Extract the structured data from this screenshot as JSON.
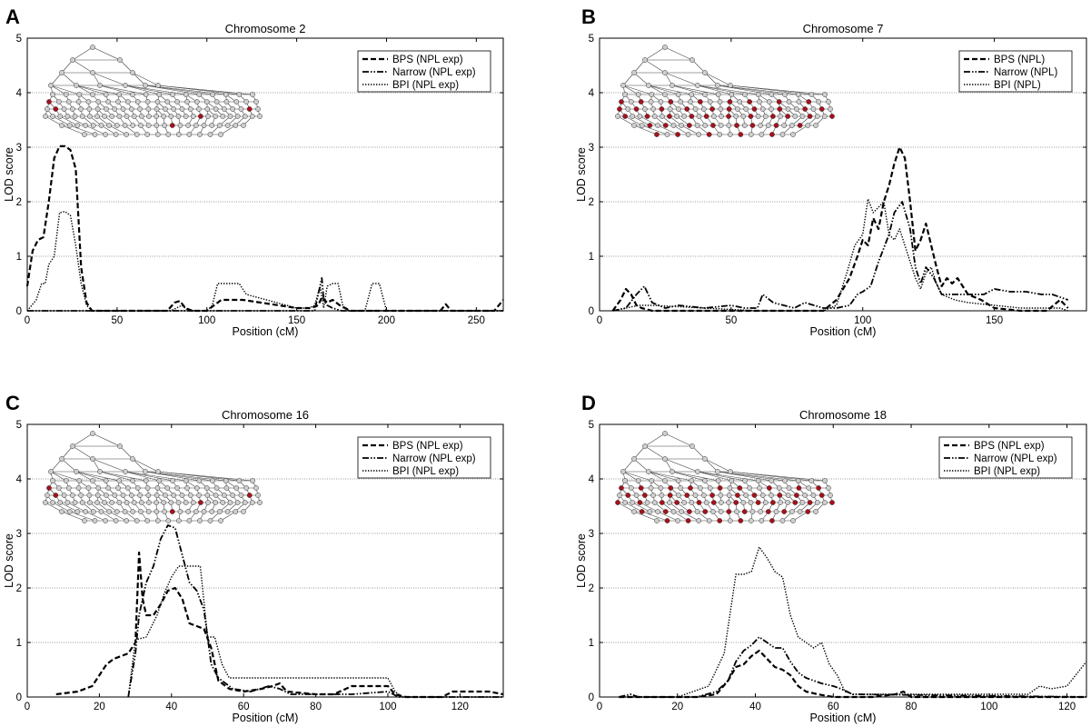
{
  "chart_data": [
    {
      "panel_letter": "A",
      "type": "line",
      "title": "Chromosome 2",
      "xlabel": "Position (cM)",
      "ylabel": "LOD score",
      "xlim": [
        0,
        265
      ],
      "ylim": [
        0,
        5
      ],
      "xticks": [
        0,
        50,
        100,
        150,
        200,
        250
      ],
      "yticks": [
        0,
        1,
        2,
        3,
        4,
        5
      ],
      "grid": "horizontal",
      "legend_position": "top-right",
      "pedigree_highlight_count": 5,
      "series": [
        {
          "name": "BPS (NPL exp)",
          "style": "dashed",
          "x": [
            0,
            3,
            6,
            9,
            12,
            15,
            18,
            21,
            24,
            27,
            30,
            33,
            36,
            40,
            60,
            78,
            82,
            85,
            88,
            92,
            100,
            104,
            108,
            112,
            120,
            150,
            158,
            162,
            164,
            167,
            170,
            174,
            180,
            230,
            233,
            236,
            260,
            265
          ],
          "y": [
            0.45,
            1.1,
            1.3,
            1.35,
            2.0,
            2.8,
            3.02,
            3.02,
            2.95,
            2.6,
            0.8,
            0.15,
            0.0,
            0.0,
            0.0,
            0.0,
            0.15,
            0.18,
            0.05,
            0.0,
            0.0,
            0.1,
            0.2,
            0.2,
            0.2,
            0.05,
            0.05,
            0.1,
            0.25,
            0.15,
            0.2,
            0.1,
            0.0,
            0.0,
            0.12,
            0.0,
            0.0,
            0.2
          ]
        },
        {
          "name": "Narrow (NPL exp)",
          "style": "dashdot",
          "x": [
            0,
            150,
            160,
            162,
            164,
            165,
            167,
            170,
            175,
            265
          ],
          "y": [
            0,
            0,
            0,
            0.3,
            0.6,
            0.2,
            0.1,
            0.05,
            0,
            0
          ]
        },
        {
          "name": "BPI (NPL exp)",
          "style": "dotted",
          "x": [
            0,
            5,
            8,
            10,
            12,
            15,
            18,
            21,
            24,
            27,
            30,
            33,
            36,
            40,
            60,
            80,
            86,
            90,
            100,
            103,
            106,
            110,
            118,
            122,
            150,
            157,
            160,
            163,
            165,
            167,
            170,
            173,
            176,
            180,
            188,
            192,
            196,
            200,
            260,
            265
          ],
          "y": [
            0,
            0.2,
            0.5,
            0.5,
            0.85,
            1.0,
            1.8,
            1.82,
            1.75,
            1.2,
            0.5,
            0.1,
            0.0,
            0.0,
            0.0,
            0.0,
            0.1,
            0.0,
            0.0,
            0.1,
            0.5,
            0.5,
            0.5,
            0.3,
            0.05,
            0.05,
            0.1,
            0.45,
            0.05,
            0.45,
            0.5,
            0.5,
            0.05,
            0.0,
            0.0,
            0.5,
            0.5,
            0.0,
            0.0,
            0.0
          ]
        }
      ]
    },
    {
      "panel_letter": "B",
      "type": "line",
      "title": "Chromosome 7",
      "xlabel": "Position (cM)",
      "ylabel": "LOD score",
      "xlim": [
        0,
        185
      ],
      "ylim": [
        0,
        5
      ],
      "xticks": [
        0,
        50,
        100,
        150
      ],
      "yticks": [
        0,
        1,
        2,
        3,
        4,
        5
      ],
      "grid": "horizontal",
      "legend_position": "top-right",
      "pedigree_highlight_count": 42,
      "series": [
        {
          "name": "BPS (NPL)",
          "style": "dashed",
          "x": [
            5,
            8,
            10,
            12,
            14,
            16,
            20,
            50,
            85,
            90,
            95,
            98,
            100,
            102,
            104,
            106,
            108,
            110,
            112,
            114,
            116,
            118,
            120,
            122,
            124,
            126,
            128,
            130,
            132,
            134,
            136,
            140,
            145,
            150,
            160,
            170,
            175,
            178
          ],
          "y": [
            0,
            0.2,
            0.4,
            0.3,
            0.1,
            0.05,
            0,
            0,
            0,
            0.2,
            0.6,
            1.0,
            1.3,
            1.2,
            1.7,
            1.5,
            2.0,
            2.3,
            2.7,
            3.0,
            2.8,
            2.0,
            1.1,
            1.3,
            1.6,
            1.2,
            0.8,
            0.45,
            0.6,
            0.5,
            0.6,
            0.3,
            0.2,
            0.05,
            0,
            0,
            0.2,
            0.05
          ]
        },
        {
          "name": "Narrow (NPL)",
          "style": "dashdot",
          "x": [
            5,
            10,
            14,
            17,
            20,
            25,
            30,
            40,
            50,
            55,
            60,
            62,
            66,
            70,
            74,
            78,
            85,
            90,
            95,
            98,
            100,
            103,
            106,
            110,
            112,
            115,
            118,
            120,
            122,
            124,
            127,
            130,
            134,
            138,
            142,
            146,
            150,
            156,
            162,
            168,
            172,
            178
          ],
          "y": [
            0,
            0.05,
            0.3,
            0.45,
            0.15,
            0.05,
            0.1,
            0.05,
            0.1,
            0.05,
            0.05,
            0.3,
            0.15,
            0.1,
            0.05,
            0.15,
            0.05,
            0.05,
            0.1,
            0.3,
            0.35,
            0.45,
            0.9,
            1.4,
            1.8,
            2.0,
            1.5,
            0.8,
            0.5,
            0.8,
            0.6,
            0.3,
            0.3,
            0.3,
            0.3,
            0.3,
            0.4,
            0.35,
            0.35,
            0.3,
            0.3,
            0.2
          ]
        },
        {
          "name": "BPI (NPL)",
          "style": "dotted",
          "x": [
            5,
            10,
            15,
            20,
            60,
            85,
            90,
            94,
            97,
            100,
            102,
            104,
            106,
            108,
            110,
            112,
            114,
            116,
            118,
            120,
            122,
            124,
            126,
            128,
            130,
            135,
            140,
            150,
            160,
            170,
            175,
            178
          ],
          "y": [
            0,
            0.05,
            0.1,
            0.1,
            0.0,
            0,
            0.1,
            0.7,
            1.2,
            1.4,
            2.05,
            1.8,
            1.9,
            2.0,
            1.4,
            1.3,
            1.5,
            1.2,
            0.9,
            0.6,
            0.4,
            0.7,
            0.8,
            0.5,
            0.3,
            0.2,
            0.15,
            0.1,
            0.05,
            0.05,
            0.05,
            0.0
          ]
        }
      ]
    },
    {
      "panel_letter": "C",
      "type": "line",
      "title": "Chromosome 16",
      "xlabel": "Position (cM)",
      "ylabel": "LOD score",
      "xlim": [
        0,
        132
      ],
      "ylim": [
        0,
        5
      ],
      "xticks": [
        0,
        20,
        40,
        60,
        80,
        100,
        120
      ],
      "yticks": [
        0,
        1,
        2,
        3,
        4,
        5
      ],
      "grid": "horizontal",
      "legend_position": "top-right",
      "pedigree_highlight_count": 5,
      "series": [
        {
          "name": "BPS (NPL exp)",
          "style": "dashed",
          "x": [
            8,
            14,
            18,
            20,
            22,
            24,
            26,
            28,
            30,
            31,
            32,
            33,
            35,
            37,
            39,
            41,
            43,
            45,
            47,
            49,
            51,
            53,
            56,
            60,
            65,
            68,
            70,
            72,
            80,
            85,
            90,
            95,
            100,
            102,
            105,
            115,
            118,
            122,
            128,
            132
          ],
          "y": [
            0.05,
            0.1,
            0.2,
            0.4,
            0.6,
            0.7,
            0.75,
            0.8,
            1.0,
            2.65,
            1.8,
            1.5,
            1.5,
            1.7,
            1.95,
            2.0,
            1.8,
            1.35,
            1.3,
            1.25,
            0.9,
            0.3,
            0.15,
            0.1,
            0.15,
            0.2,
            0.25,
            0.1,
            0.05,
            0.05,
            0.2,
            0.2,
            0.2,
            0.05,
            0.0,
            0.0,
            0.1,
            0.1,
            0.1,
            0.05
          ]
        },
        {
          "name": "Narrow (NPL exp)",
          "style": "dashdot",
          "x": [
            28,
            30,
            31,
            33,
            35,
            37,
            39,
            41,
            43,
            45,
            47,
            49,
            51,
            53,
            57,
            62,
            67,
            70,
            73,
            85,
            90,
            100,
            103,
            132
          ],
          "y": [
            0,
            0.8,
            1.5,
            2.1,
            2.4,
            2.9,
            3.15,
            3.1,
            2.6,
            2.1,
            1.95,
            1.6,
            0.6,
            0.35,
            0.15,
            0.1,
            0.2,
            0.15,
            0.05,
            0.05,
            0.05,
            0.1,
            0.0,
            0.0
          ]
        },
        {
          "name": "BPI (NPL exp)",
          "style": "dotted",
          "x": [
            28,
            30,
            33,
            36,
            38,
            40,
            42,
            44,
            46,
            48,
            50,
            52,
            54,
            56,
            58,
            70,
            100,
            102,
            104,
            132
          ],
          "y": [
            0,
            1.05,
            1.1,
            1.5,
            1.9,
            2.2,
            2.4,
            2.4,
            2.4,
            2.4,
            1.1,
            1.1,
            0.6,
            0.35,
            0.35,
            0.35,
            0.35,
            0.1,
            0.0,
            0.0
          ]
        }
      ]
    },
    {
      "panel_letter": "D",
      "type": "line",
      "title": "Chromosome 18",
      "xlabel": "Position (cM)",
      "ylabel": "LOD score",
      "xlim": [
        0,
        125
      ],
      "ylim": [
        0,
        5
      ],
      "xticks": [
        0,
        20,
        40,
        60,
        80,
        100,
        120
      ],
      "yticks": [
        0,
        1,
        2,
        3,
        4,
        5
      ],
      "grid": "horizontal",
      "legend_position": "top-right",
      "pedigree_highlight_count": 45,
      "series": [
        {
          "name": "BPS (NPL exp)",
          "style": "dashed",
          "x": [
            5,
            25,
            30,
            33,
            35,
            37,
            39,
            41,
            43,
            45,
            47,
            49,
            51,
            53,
            56,
            60,
            64,
            70,
            76,
            78,
            80,
            100,
            125
          ],
          "y": [
            0,
            0,
            0.05,
            0.3,
            0.55,
            0.6,
            0.75,
            0.85,
            0.7,
            0.55,
            0.5,
            0.4,
            0.2,
            0.1,
            0.05,
            0,
            0,
            0,
            0.05,
            0.1,
            0,
            0,
            0
          ]
        },
        {
          "name": "Narrow (NPL exp)",
          "style": "dashdot",
          "x": [
            5,
            8,
            10,
            15,
            25,
            30,
            33,
            35,
            37,
            39,
            41,
            43,
            45,
            47,
            49,
            51,
            53,
            55,
            57,
            60,
            62,
            65,
            125
          ],
          "y": [
            0,
            0.05,
            0,
            0,
            0,
            0.1,
            0.3,
            0.65,
            0.85,
            0.95,
            1.1,
            1.0,
            0.9,
            0.9,
            0.65,
            0.45,
            0.35,
            0.3,
            0.25,
            0.2,
            0.15,
            0.05,
            0.0
          ]
        },
        {
          "name": "BPI (NPL exp)",
          "style": "dotted",
          "x": [
            5,
            20,
            28,
            32,
            35,
            37,
            39,
            41,
            43,
            45,
            47,
            49,
            51,
            53,
            55,
            57,
            59,
            61,
            63,
            65,
            100,
            110,
            113,
            116,
            120,
            125
          ],
          "y": [
            0,
            0,
            0.2,
            0.8,
            2.25,
            2.25,
            2.3,
            2.75,
            2.55,
            2.3,
            2.2,
            1.5,
            1.1,
            1.0,
            0.9,
            1.0,
            0.6,
            0.4,
            0.1,
            0.05,
            0.05,
            0.05,
            0.2,
            0.15,
            0.2,
            0.65
          ]
        }
      ]
    }
  ]
}
